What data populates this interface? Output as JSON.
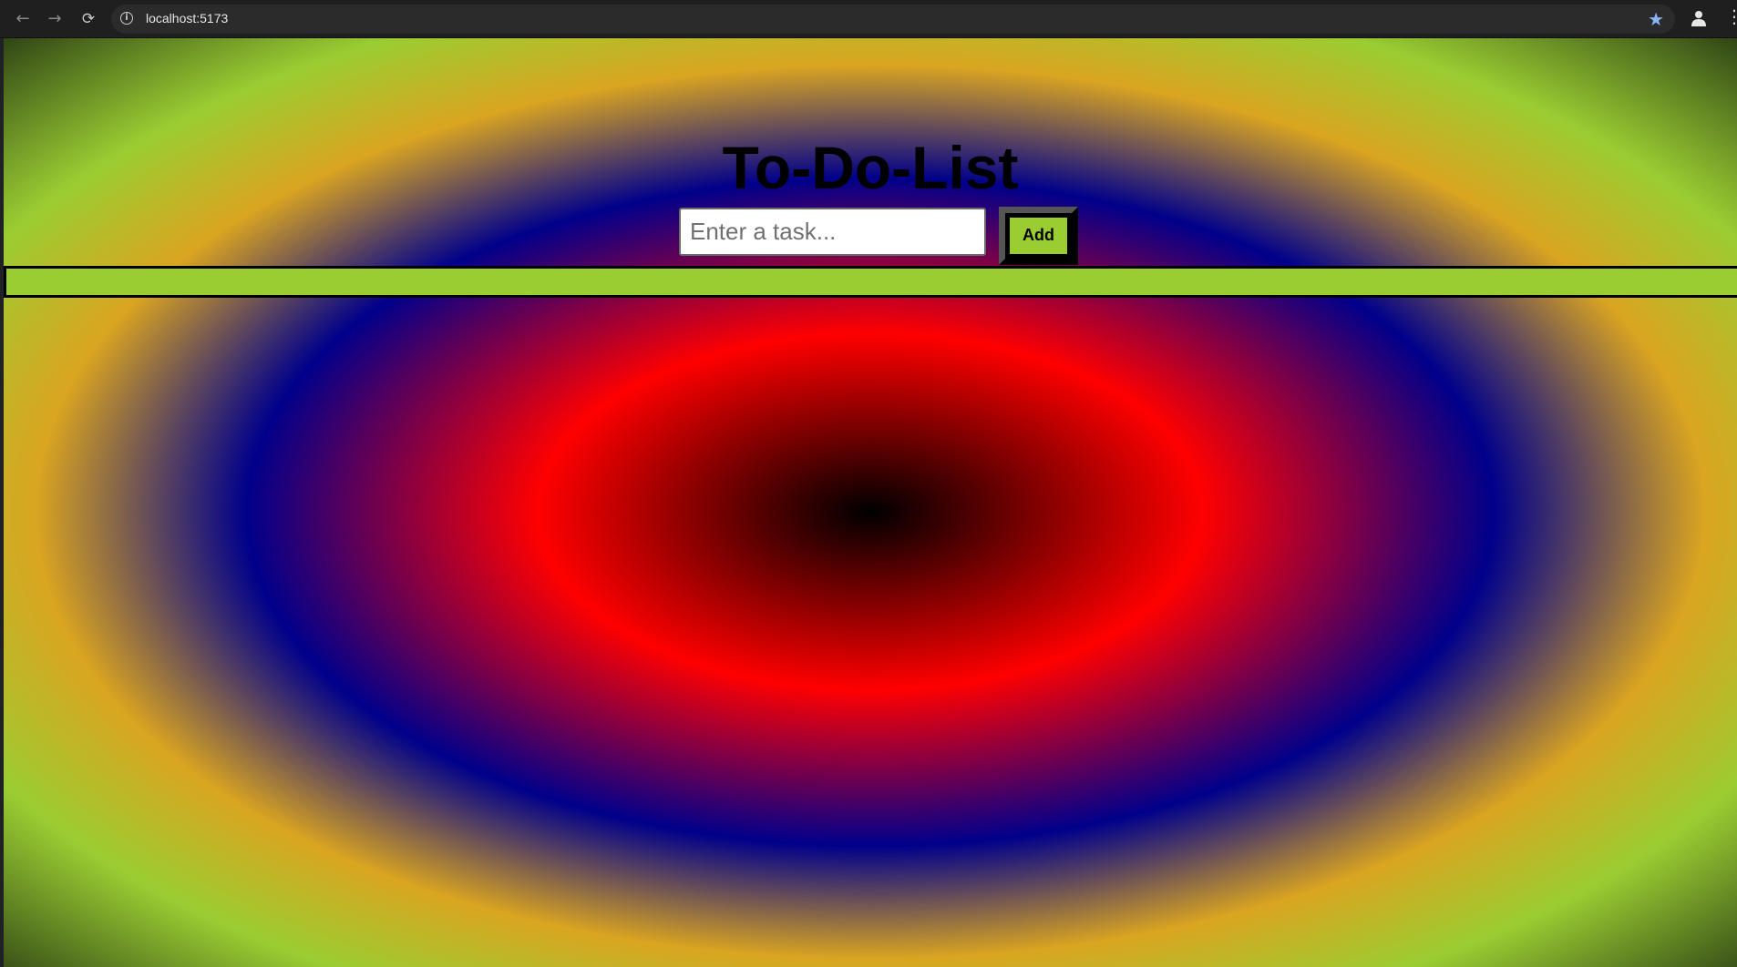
{
  "browser": {
    "back_icon": "←",
    "forward_icon": "→",
    "reload_icon": "⟳",
    "site_info_icon": "i",
    "url": "localhost:5173",
    "bookmark_icon": "★",
    "menu_icon": "⋮"
  },
  "app": {
    "title": "To-Do-List",
    "input_placeholder": "Enter a task...",
    "input_value": "",
    "add_label": "Add",
    "tasks": []
  },
  "colors": {
    "title": "#000000",
    "button_face": "#9acd32",
    "list_background": "#9acd32",
    "gradient": [
      "#000000",
      "#ff0000",
      "#00008b",
      "#daa520",
      "#9acd32"
    ]
  }
}
